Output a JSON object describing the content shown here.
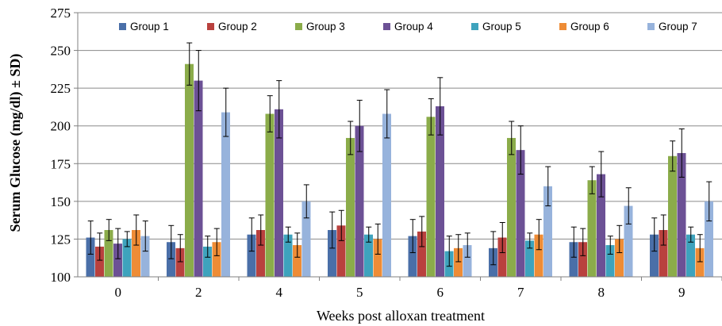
{
  "chart_data": {
    "type": "bar",
    "title": "",
    "xlabel": "Weeks post alloxan treatment",
    "ylabel": "Serum Glucose (mg/dl) ± SD)",
    "ylim": [
      100,
      275
    ],
    "yticks": [
      100,
      125,
      150,
      175,
      200,
      225,
      250,
      275
    ],
    "categories": [
      "0",
      "2",
      "4",
      "5",
      "6",
      "7",
      "8",
      "9"
    ],
    "grid": true,
    "legend_position": "top",
    "error_bars": true,
    "series": [
      {
        "name": "Group 1",
        "color": "#4a6fa8",
        "values": [
          126,
          123,
          128,
          131,
          127,
          119,
          123,
          128
        ],
        "errors": [
          11,
          11,
          11,
          12,
          11,
          11,
          10,
          11
        ]
      },
      {
        "name": "Group 2",
        "color": "#b9413e",
        "values": [
          120,
          119,
          131,
          134,
          130,
          126,
          123,
          131
        ],
        "errors": [
          9,
          9,
          10,
          10,
          10,
          10,
          9,
          10
        ]
      },
      {
        "name": "Group 3",
        "color": "#8bac4a",
        "values": [
          131,
          241,
          208,
          192,
          206,
          192,
          164,
          180
        ],
        "errors": [
          7,
          14,
          12,
          11,
          12,
          11,
          9,
          10
        ]
      },
      {
        "name": "Group 4",
        "color": "#6c5195",
        "values": [
          122,
          230,
          211,
          200,
          213,
          184,
          168,
          182
        ],
        "errors": [
          10,
          20,
          19,
          17,
          19,
          16,
          15,
          16
        ]
      },
      {
        "name": "Group 5",
        "color": "#3ea3bd",
        "values": [
          125,
          120,
          128,
          128,
          117,
          124,
          121,
          128
        ],
        "errors": [
          5,
          7,
          5,
          5,
          10,
          5,
          6,
          5
        ]
      },
      {
        "name": "Group 6",
        "color": "#ee8c36",
        "values": [
          131,
          123,
          121,
          125,
          119,
          128,
          125,
          119
        ],
        "errors": [
          10,
          9,
          8,
          10,
          9,
          10,
          9,
          9
        ]
      },
      {
        "name": "Group 7",
        "color": "#97b3dc",
        "values": [
          127,
          209,
          150,
          208,
          121,
          160,
          147,
          150
        ],
        "errors": [
          10,
          16,
          11,
          16,
          8,
          13,
          12,
          13
        ]
      }
    ]
  }
}
